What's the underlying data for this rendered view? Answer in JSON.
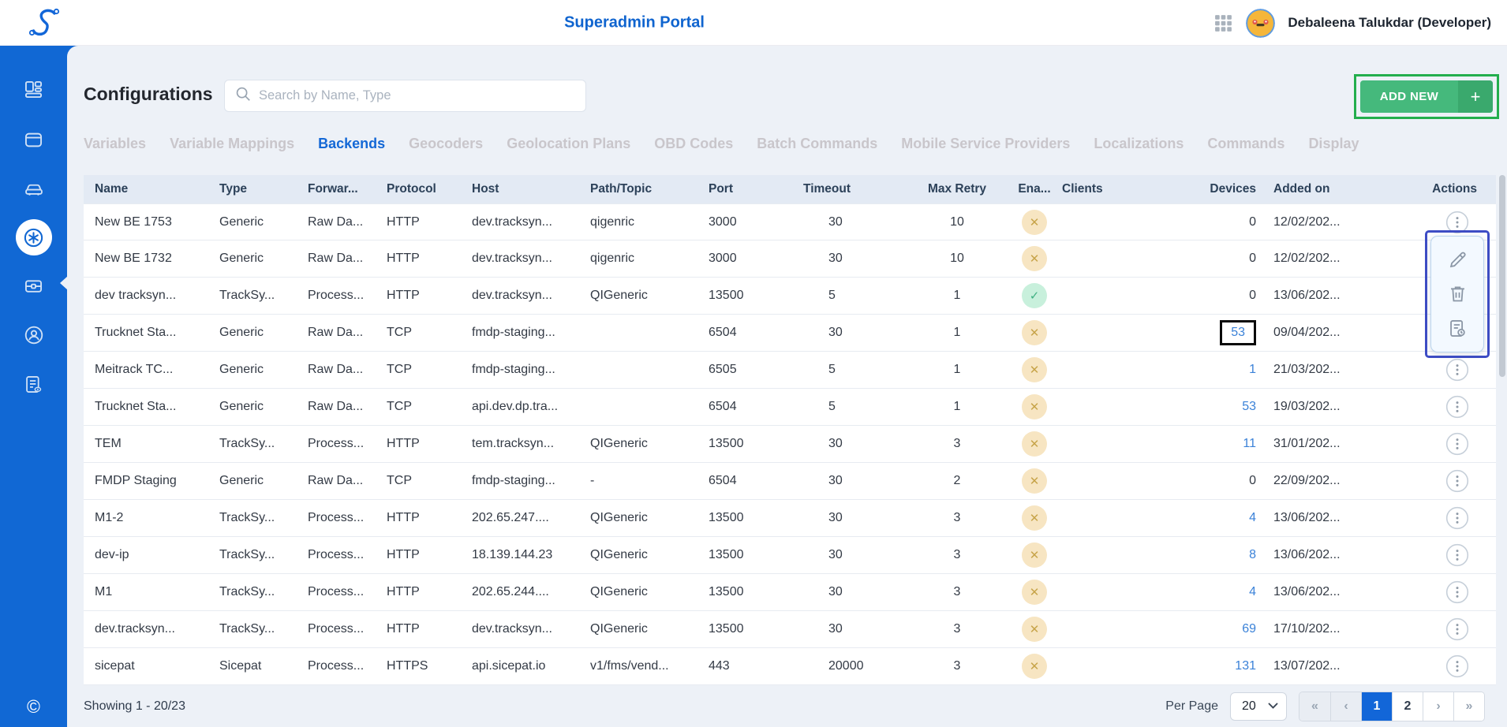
{
  "header": {
    "title": "Superadmin Portal",
    "user_name": "Debaleena Talukdar (Developer)"
  },
  "page": {
    "title": "Configurations",
    "search_placeholder": "Search by Name, Type",
    "add_new_label": "ADD NEW",
    "add_new_plus": "+"
  },
  "tabs": [
    {
      "label": "Variables",
      "active": false
    },
    {
      "label": "Variable Mappings",
      "active": false
    },
    {
      "label": "Backends",
      "active": true
    },
    {
      "label": "Geocoders",
      "active": false
    },
    {
      "label": "Geolocation Plans",
      "active": false
    },
    {
      "label": "OBD Codes",
      "active": false
    },
    {
      "label": "Batch Commands",
      "active": false
    },
    {
      "label": "Mobile Service Providers",
      "active": false
    },
    {
      "label": "Localizations",
      "active": false
    },
    {
      "label": "Commands",
      "active": false
    },
    {
      "label": "Display",
      "active": false
    }
  ],
  "table": {
    "columns": [
      "Name",
      "Type",
      "Forwar...",
      "Protocol",
      "Host",
      "Path/Topic",
      "Port",
      "Timeout",
      "Max Retry",
      "Ena...",
      "Clients",
      "Devices",
      "Added on",
      "Actions"
    ],
    "rows": [
      {
        "name": "New BE 1753",
        "type": "Generic",
        "forwarding": "Raw Da...",
        "protocol": "HTTP",
        "host": "dev.tracksyn...",
        "path": "qigenric",
        "port": "3000",
        "timeout": "30",
        "max_retry": "10",
        "enabled": "no",
        "clients": "",
        "devices": "0",
        "devices_link": false,
        "devices_boxed": false,
        "added_on": "12/02/202...",
        "kebab": true
      },
      {
        "name": "New BE 1732",
        "type": "Generic",
        "forwarding": "Raw Da...",
        "protocol": "HTTP",
        "host": "dev.tracksyn...",
        "path": "qigenric",
        "port": "3000",
        "timeout": "30",
        "max_retry": "10",
        "enabled": "no",
        "clients": "",
        "devices": "0",
        "devices_link": false,
        "devices_boxed": false,
        "added_on": "12/02/202...",
        "kebab": false
      },
      {
        "name": "dev tracksyn...",
        "type": "TrackSy...",
        "forwarding": "Process...",
        "protocol": "HTTP",
        "host": "dev.tracksyn...",
        "path": "QIGeneric",
        "port": "13500",
        "timeout": "5",
        "max_retry": "1",
        "enabled": "yes",
        "clients": "",
        "devices": "0",
        "devices_link": false,
        "devices_boxed": false,
        "added_on": "13/06/202...",
        "kebab": false
      },
      {
        "name": "Trucknet Sta...",
        "type": "Generic",
        "forwarding": "Raw Da...",
        "protocol": "TCP",
        "host": "fmdp-staging...",
        "path": "",
        "port": "6504",
        "timeout": "30",
        "max_retry": "1",
        "enabled": "no",
        "clients": "",
        "devices": "53",
        "devices_link": true,
        "devices_boxed": true,
        "added_on": "09/04/202...",
        "kebab": false
      },
      {
        "name": "Meitrack TC...",
        "type": "Generic",
        "forwarding": "Raw Da...",
        "protocol": "TCP",
        "host": "fmdp-staging...",
        "path": "",
        "port": "6505",
        "timeout": "5",
        "max_retry": "1",
        "enabled": "no",
        "clients": "",
        "devices": "1",
        "devices_link": true,
        "devices_boxed": false,
        "added_on": "21/03/202...",
        "kebab": true
      },
      {
        "name": "Trucknet Sta...",
        "type": "Generic",
        "forwarding": "Raw Da...",
        "protocol": "TCP",
        "host": "api.dev.dp.tra...",
        "path": "",
        "port": "6504",
        "timeout": "5",
        "max_retry": "1",
        "enabled": "no",
        "clients": "",
        "devices": "53",
        "devices_link": true,
        "devices_boxed": false,
        "added_on": "19/03/202...",
        "kebab": true
      },
      {
        "name": "TEM",
        "type": "TrackSy...",
        "forwarding": "Process...",
        "protocol": "HTTP",
        "host": "tem.tracksyn...",
        "path": "QIGeneric",
        "port": "13500",
        "timeout": "30",
        "max_retry": "3",
        "enabled": "no",
        "clients": "",
        "devices": "11",
        "devices_link": true,
        "devices_boxed": false,
        "added_on": "31/01/202...",
        "kebab": true
      },
      {
        "name": "FMDP Staging",
        "type": "Generic",
        "forwarding": "Raw Da...",
        "protocol": "TCP",
        "host": "fmdp-staging...",
        "path": "-",
        "port": "6504",
        "timeout": "30",
        "max_retry": "2",
        "enabled": "no",
        "clients": "",
        "devices": "0",
        "devices_link": false,
        "devices_boxed": false,
        "added_on": "22/09/202...",
        "kebab": true
      },
      {
        "name": "M1-2",
        "type": "TrackSy...",
        "forwarding": "Process...",
        "protocol": "HTTP",
        "host": "202.65.247....",
        "path": "QIGeneric",
        "port": "13500",
        "timeout": "30",
        "max_retry": "3",
        "enabled": "no",
        "clients": "",
        "devices": "4",
        "devices_link": true,
        "devices_boxed": false,
        "added_on": "13/06/202...",
        "kebab": true
      },
      {
        "name": "dev-ip",
        "type": "TrackSy...",
        "forwarding": "Process...",
        "protocol": "HTTP",
        "host": "18.139.144.23",
        "path": "QIGeneric",
        "port": "13500",
        "timeout": "30",
        "max_retry": "3",
        "enabled": "no",
        "clients": "",
        "devices": "8",
        "devices_link": true,
        "devices_boxed": false,
        "added_on": "13/06/202...",
        "kebab": true
      },
      {
        "name": "M1",
        "type": "TrackSy...",
        "forwarding": "Process...",
        "protocol": "HTTP",
        "host": "202.65.244....",
        "path": "QIGeneric",
        "port": "13500",
        "timeout": "30",
        "max_retry": "3",
        "enabled": "no",
        "clients": "",
        "devices": "4",
        "devices_link": true,
        "devices_boxed": false,
        "added_on": "13/06/202...",
        "kebab": true
      },
      {
        "name": "dev.tracksyn...",
        "type": "TrackSy...",
        "forwarding": "Process...",
        "protocol": "HTTP",
        "host": "dev.tracksyn...",
        "path": "QIGeneric",
        "port": "13500",
        "timeout": "30",
        "max_retry": "3",
        "enabled": "no",
        "clients": "",
        "devices": "69",
        "devices_link": true,
        "devices_boxed": false,
        "added_on": "17/10/202...",
        "kebab": true
      },
      {
        "name": "sicepat",
        "type": "Sicepat",
        "forwarding": "Process...",
        "protocol": "HTTPS",
        "host": "api.sicepat.io",
        "path": "v1/fms/vend...",
        "port": "443",
        "timeout": "20000",
        "max_retry": "3",
        "enabled": "no",
        "clients": "",
        "devices": "131",
        "devices_link": true,
        "devices_boxed": false,
        "added_on": "13/07/202...",
        "kebab": true
      }
    ]
  },
  "action_menu": {
    "items": [
      "edit",
      "delete",
      "logs"
    ]
  },
  "sidebar": {
    "items": [
      "dashboard",
      "devices",
      "vehicles",
      "configurations",
      "toolbox",
      "accounts",
      "reports"
    ],
    "active_item": "configurations",
    "copyright": "©"
  },
  "footer": {
    "showing": "Showing 1 - 20/23",
    "per_page_label": "Per Page",
    "per_page_value": "20",
    "pager": [
      {
        "label": "«",
        "kind": "first",
        "dim": true
      },
      {
        "label": "‹",
        "kind": "prev",
        "dim": true
      },
      {
        "label": "1",
        "kind": "page",
        "active": true
      },
      {
        "label": "2",
        "kind": "page",
        "active": false
      },
      {
        "label": "›",
        "kind": "next",
        "dim": false
      },
      {
        "label": "»",
        "kind": "last",
        "dim": false
      }
    ]
  },
  "icons": {
    "logo": "s-curve-logo",
    "apps": "grid-icon",
    "search": "magnifier-icon",
    "enabled_yes": "check-circle",
    "enabled_no": "cross-circle",
    "row_actions": "kebab-icon",
    "popup": [
      "pencil-icon",
      "trash-icon",
      "document-clock-icon"
    ]
  },
  "annotations": {
    "add_new_box_color": "#23ae4d",
    "action_menu_box_color": "#3e4dc5",
    "devices_count_box_color": "#000000",
    "boxed_device_count": "53"
  },
  "colors": {
    "brand_blue": "#1168d4",
    "title_blue": "#0f64cf",
    "green_button": "#45b97c",
    "link_blue": "#3b82d8",
    "table_header_bg": "#e3eaf4",
    "badge_no_bg": "#f7e5c2",
    "badge_yes_bg": "#c8f0dc",
    "pagination_active": "#1266d8"
  }
}
